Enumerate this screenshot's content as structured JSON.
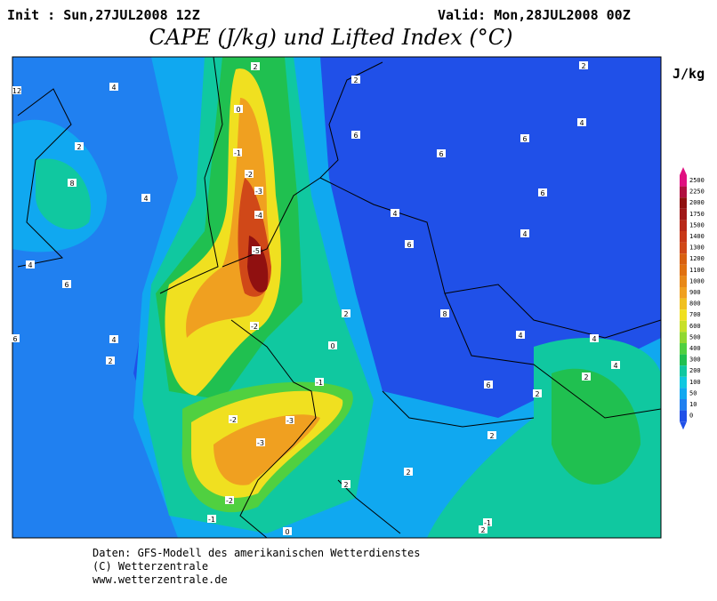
{
  "header": {
    "init": "Init : Sun,27JUL2008 12Z",
    "valid": "Valid: Mon,28JUL2008 00Z",
    "title": "CAPE (J/kg) und Lifted Index (°C)"
  },
  "colorbar": {
    "unit": "J/kg",
    "levels": [
      2500,
      2250,
      2000,
      1750,
      1500,
      1400,
      1300,
      1200,
      1100,
      1000,
      900,
      800,
      700,
      600,
      500,
      400,
      300,
      200,
      100,
      50,
      10,
      0
    ],
    "colors": [
      "#e01080",
      "#b01040",
      "#901010",
      "#a01818",
      "#b82818",
      "#c83818",
      "#d04818",
      "#d86010",
      "#e07010",
      "#e88818",
      "#f0a020",
      "#f0c020",
      "#f0e020",
      "#c8e028",
      "#90d830",
      "#50d040",
      "#20c050",
      "#10c8a0",
      "#10c8e0",
      "#10a8f0",
      "#2080f0",
      "#2050e8"
    ]
  },
  "contour_labels": [
    2,
    0,
    -1,
    -2,
    -3,
    -4,
    -5,
    -2,
    2,
    0,
    -1,
    -2,
    -3,
    -3,
    -2,
    -1,
    0,
    2,
    2,
    4,
    2,
    4,
    4,
    6,
    4,
    2,
    6,
    2,
    6,
    6,
    6,
    4,
    2,
    6,
    4,
    6,
    4,
    8,
    4,
    4,
    4,
    2,
    6,
    2,
    12,
    8,
    2,
    2,
    -1
  ],
  "footer": [
    "Daten: GFS-Modell des amerikanischen Wetterdienstes",
    "(C) Wetterzentrale",
    "www.wetterzentrale.de"
  ]
}
